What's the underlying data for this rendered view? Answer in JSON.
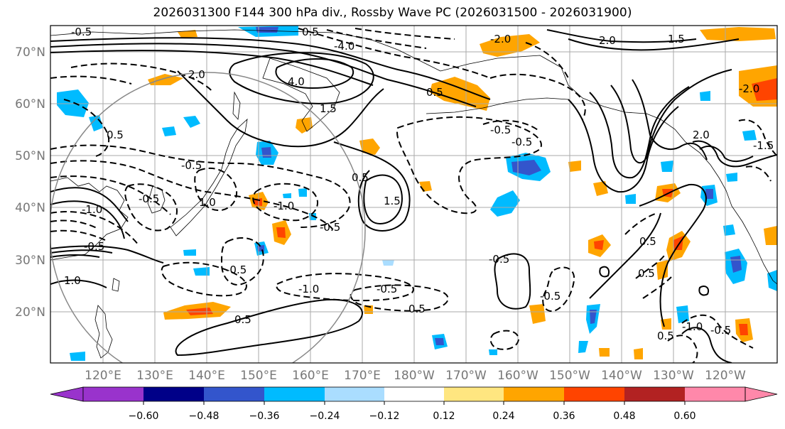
{
  "title": "2026031300 F144 300 hPa div., Rossby Wave PC (2026031500 - 2026031900)",
  "axes": {
    "lon_labels": [
      "120°E",
      "130°E",
      "140°E",
      "150°E",
      "160°E",
      "170°E",
      "180°W",
      "170°W",
      "160°W",
      "150°W",
      "140°W",
      "130°W",
      "120°W"
    ],
    "lat_labels": [
      "20°N",
      "30°N",
      "40°N",
      "50°N",
      "60°N",
      "70°N"
    ]
  },
  "colorbar": {
    "ticks": [
      "−0.60",
      "−0.48",
      "−0.36",
      "−0.24",
      "−0.12",
      "0.12",
      "0.24",
      "0.36",
      "0.48",
      "0.60"
    ],
    "colors": [
      "#9933cc",
      "#000088",
      "#3355cc",
      "#00bbff",
      "#aaddff",
      "#ffffff",
      "#ffe680",
      "#ffa500",
      "#ff4400",
      "#b22222",
      "#ff88aa"
    ]
  },
  "contour_labels": [
    "-0.5",
    "-1.0",
    "-0.5",
    "-0.5",
    "0.5",
    "-1.0",
    "-0.5",
    "0.5",
    "-0.5",
    "1.5",
    "4.0",
    "2.0",
    "-4.0",
    "2.0",
    "-2.0",
    "0.5",
    "0.5",
    "-0.5",
    "-0.5",
    "1.0",
    "-1.0",
    "1.0",
    "-0.5",
    "-0.5",
    "2.0",
    "-0.5",
    "1.5",
    "-1.0",
    "0.5",
    "0.5",
    "0.5",
    "-0.5",
    "-2.0",
    "-0.5",
    "0.5",
    "1.5",
    "0.5",
    "-1.5"
  ],
  "colors": {
    "neg_fill": "#00bbff",
    "neg_core": "#3355cc",
    "pos_fill": "#ffa500",
    "pos_core": "#ff4400",
    "pos_light": "#ffe680",
    "grid": "#aaaaaa",
    "circle": "#888888"
  }
}
